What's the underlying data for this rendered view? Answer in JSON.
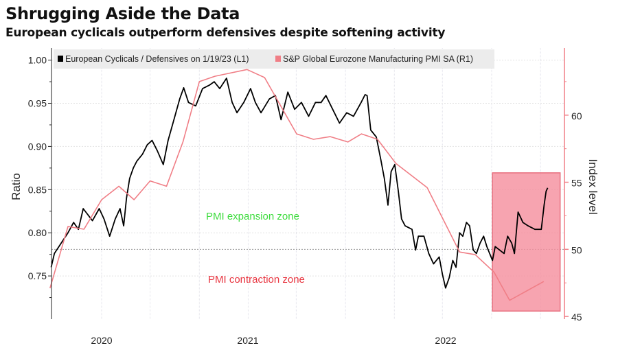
{
  "title": "Shrugging Aside the Data",
  "subtitle": "European cyclicals outperform defensives despite softening activity",
  "chart_data": {
    "type": "line",
    "x_ticks": [
      "2020",
      "2021",
      "2022"
    ],
    "left_axis": {
      "label": "Ratio",
      "ticks": [
        0.75,
        0.8,
        0.85,
        0.9,
        0.95,
        1.0
      ],
      "tick_labels": [
        "0.75",
        "0.80",
        "0.85",
        "0.90",
        "0.95",
        "1.00"
      ],
      "range": [
        0.7,
        1.014
      ]
    },
    "right_axis": {
      "label": "Index level",
      "ticks": [
        45,
        50,
        55,
        60
      ],
      "tick_labels": [
        "45",
        "50",
        "55",
        "60"
      ],
      "range": [
        44.8,
        65
      ],
      "color": "#f07e86"
    },
    "grid": true,
    "legend_placement": "top",
    "reference_line": {
      "axis": "right",
      "value": 50
    },
    "annotations": [
      {
        "text": "PMI expansion zone",
        "color": "#3ddc3d"
      },
      {
        "text": "PMI contraction zone",
        "color": "#e8343f"
      }
    ],
    "highlight": {
      "x": [
        "2022-09-03",
        "2023-02-19"
      ],
      "right_y": [
        45.4,
        55.7
      ],
      "fill": "#f58d9c",
      "stroke": "#e8707f"
    },
    "series": [
      {
        "name": "European Cyclicals / Defensives on 1/19/23 (L1)",
        "axis": "left",
        "color": "#000000",
        "points": [
          [
            "2019-08-28",
            0.76
          ],
          [
            "2019-09-05",
            0.776
          ],
          [
            "2019-09-22",
            0.788
          ],
          [
            "2019-10-09",
            0.8
          ],
          [
            "2019-10-23",
            0.812
          ],
          [
            "2019-11-04",
            0.804
          ],
          [
            "2019-11-16",
            0.828
          ],
          [
            "2019-12-09",
            0.814
          ],
          [
            "2019-12-26",
            0.828
          ],
          [
            "2020-01-07",
            0.816
          ],
          [
            "2020-01-21",
            0.796
          ],
          [
            "2020-02-04",
            0.816
          ],
          [
            "2020-02-16",
            0.828
          ],
          [
            "2020-02-25",
            0.808
          ],
          [
            "2020-03-03",
            0.84
          ],
          [
            "2020-03-11",
            0.863
          ],
          [
            "2020-03-20",
            0.875
          ],
          [
            "2020-03-29",
            0.883
          ],
          [
            "2020-04-12",
            0.891
          ],
          [
            "2020-04-24",
            0.902
          ],
          [
            "2020-05-06",
            0.907
          ],
          [
            "2020-05-19",
            0.895
          ],
          [
            "2020-06-03",
            0.879
          ],
          [
            "2020-06-15",
            0.907
          ],
          [
            "2020-07-02",
            0.935
          ],
          [
            "2020-07-14",
            0.955
          ],
          [
            "2020-07-24",
            0.968
          ],
          [
            "2020-08-05",
            0.951
          ],
          [
            "2020-08-23",
            0.947
          ],
          [
            "2020-09-09",
            0.967
          ],
          [
            "2020-09-26",
            0.971
          ],
          [
            "2020-10-08",
            0.975
          ],
          [
            "2020-10-22",
            0.967
          ],
          [
            "2020-11-08",
            0.979
          ],
          [
            "2020-11-22",
            0.951
          ],
          [
            "2020-12-04",
            0.939
          ],
          [
            "2020-12-21",
            0.951
          ],
          [
            "2021-01-07",
            0.967
          ],
          [
            "2021-01-19",
            0.951
          ],
          [
            "2021-02-02",
            0.939
          ],
          [
            "2021-02-23",
            0.955
          ],
          [
            "2021-03-10",
            0.959
          ],
          [
            "2021-03-24",
            0.931
          ],
          [
            "2021-04-10",
            0.963
          ],
          [
            "2021-04-27",
            0.943
          ],
          [
            "2021-05-14",
            0.951
          ],
          [
            "2021-06-01",
            0.935
          ],
          [
            "2021-06-18",
            0.951
          ],
          [
            "2021-07-02",
            0.951
          ],
          [
            "2021-07-14",
            0.959
          ],
          [
            "2021-07-31",
            0.943
          ],
          [
            "2021-08-17",
            0.927
          ],
          [
            "2021-09-04",
            0.939
          ],
          [
            "2021-09-21",
            0.935
          ],
          [
            "2021-10-10",
            0.951
          ],
          [
            "2021-10-20",
            0.96
          ],
          [
            "2021-10-25",
            0.959
          ],
          [
            "2021-11-03",
            0.919
          ],
          [
            "2021-11-17",
            0.911
          ],
          [
            "2021-11-29",
            0.883
          ],
          [
            "2021-12-07",
            0.863
          ],
          [
            "2021-12-16",
            0.832
          ],
          [
            "2021-12-24",
            0.871
          ],
          [
            "2022-01-02",
            0.879
          ],
          [
            "2022-01-11",
            0.848
          ],
          [
            "2022-01-19",
            0.816
          ],
          [
            "2022-01-28",
            0.808
          ],
          [
            "2022-02-14",
            0.804
          ],
          [
            "2022-02-23",
            0.78
          ],
          [
            "2022-03-02",
            0.796
          ],
          [
            "2022-03-16",
            0.796
          ],
          [
            "2022-03-28",
            0.776
          ],
          [
            "2022-04-09",
            0.764
          ],
          [
            "2022-04-23",
            0.772
          ],
          [
            "2022-05-01",
            0.752
          ],
          [
            "2022-05-09",
            0.736
          ],
          [
            "2022-05-18",
            0.748
          ],
          [
            "2022-05-27",
            0.768
          ],
          [
            "2022-06-04",
            0.76
          ],
          [
            "2022-06-13",
            0.8
          ],
          [
            "2022-06-21",
            0.796
          ],
          [
            "2022-06-30",
            0.812
          ],
          [
            "2022-07-08",
            0.808
          ],
          [
            "2022-07-17",
            0.78
          ],
          [
            "2022-07-25",
            0.776
          ],
          [
            "2022-08-03",
            0.788
          ],
          [
            "2022-08-12",
            0.796
          ],
          [
            "2022-08-20",
            0.784
          ],
          [
            "2022-09-03",
            0.768
          ],
          [
            "2022-09-10",
            0.784
          ],
          [
            "2022-09-21",
            0.78
          ],
          [
            "2022-10-02",
            0.776
          ],
          [
            "2022-10-11",
            0.796
          ],
          [
            "2022-10-21",
            0.788
          ],
          [
            "2022-10-28",
            0.776
          ],
          [
            "2022-11-06",
            0.824
          ],
          [
            "2022-11-18",
            0.812
          ],
          [
            "2022-12-01",
            0.808
          ],
          [
            "2022-12-18",
            0.804
          ],
          [
            "2023-01-03",
            0.804
          ],
          [
            "2023-01-10",
            0.832
          ],
          [
            "2023-01-15",
            0.848
          ],
          [
            "2023-01-19",
            0.852
          ]
        ]
      },
      {
        "name": "S&P Global Eurozone Manufacturing PMI SA (R1)",
        "axis": "right",
        "color": "#f07e86",
        "points": [
          [
            "2019-08-25",
            47.1
          ],
          [
            "2019-10-09",
            51.7
          ],
          [
            "2019-11-18",
            51.5
          ],
          [
            "2020-01-01",
            53.7
          ],
          [
            "2020-02-13",
            54.7
          ],
          [
            "2020-03-22",
            53.7
          ],
          [
            "2020-05-01",
            55.1
          ],
          [
            "2020-06-11",
            54.7
          ],
          [
            "2020-07-22",
            58.0
          ],
          [
            "2020-09-01",
            62.5
          ],
          [
            "2020-10-10",
            62.9
          ],
          [
            "2020-12-29",
            63.4
          ],
          [
            "2021-02-11",
            62.8
          ],
          [
            "2021-05-02",
            58.6
          ],
          [
            "2021-06-13",
            58.2
          ],
          [
            "2021-07-25",
            58.4
          ],
          [
            "2021-09-07",
            58.0
          ],
          [
            "2021-10-11",
            58.6
          ],
          [
            "2021-11-20",
            58.2
          ],
          [
            "2022-01-05",
            56.4
          ],
          [
            "2022-03-24",
            54.6
          ],
          [
            "2022-06-13",
            49.8
          ],
          [
            "2022-07-22",
            49.6
          ],
          [
            "2022-09-07",
            48.3
          ],
          [
            "2022-10-16",
            46.2
          ],
          [
            "2023-01-09",
            47.6
          ]
        ]
      }
    ]
  }
}
